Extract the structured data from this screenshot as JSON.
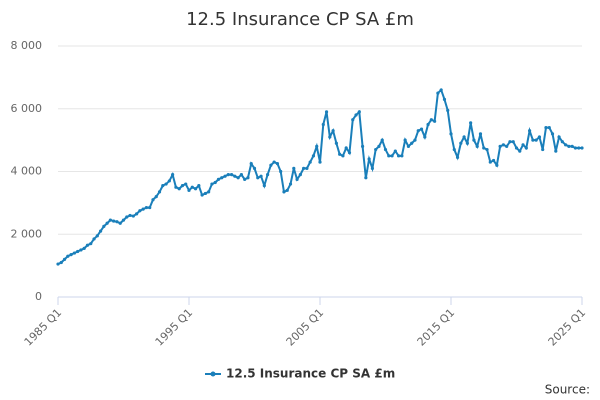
{
  "chart_data": {
    "type": "line",
    "title": "12.5 Insurance CP SA £m",
    "source": "Source:",
    "categories": [
      "1985 Q1",
      null,
      null,
      null,
      null,
      null,
      null,
      null,
      null,
      null,
      null,
      null,
      null,
      null,
      null,
      null,
      null,
      null,
      null,
      null,
      null,
      null,
      null,
      null,
      null,
      null,
      null,
      null,
      null,
      null,
      null,
      null,
      null,
      null,
      null,
      null,
      null,
      null,
      null,
      null,
      "1995 Q1",
      null,
      null,
      null,
      null,
      null,
      null,
      null,
      null,
      null,
      null,
      null,
      null,
      null,
      null,
      null,
      null,
      null,
      null,
      null,
      null,
      null,
      null,
      null,
      null,
      null,
      null,
      null,
      null,
      null,
      null,
      null,
      null,
      null,
      null,
      null,
      null,
      null,
      null,
      null,
      "2005 Q1",
      null,
      null,
      null,
      null,
      null,
      null,
      null,
      null,
      null,
      null,
      null,
      null,
      null,
      null,
      null,
      null,
      null,
      null,
      null,
      null,
      null,
      null,
      null,
      null,
      null,
      null,
      null,
      null,
      null,
      null,
      null,
      null,
      null,
      null,
      null,
      null,
      null,
      null,
      null,
      "2015 Q1",
      null,
      null,
      null,
      null,
      null,
      null,
      null,
      null,
      null,
      null,
      null,
      null,
      null,
      null,
      null,
      null,
      null,
      null,
      null,
      null,
      null,
      null,
      null,
      null,
      null,
      null,
      null,
      null,
      null,
      null,
      null,
      null,
      null,
      null,
      null,
      null,
      null,
      null,
      null,
      "2025 Q1"
    ],
    "series": [
      {
        "name": "12.5 Insurance CP SA £m",
        "color": "#1a7fba",
        "values": [
          1050,
          1100,
          1200,
          1300,
          1350,
          1400,
          1450,
          1500,
          1550,
          1650,
          1700,
          1850,
          1950,
          2100,
          2250,
          2350,
          2450,
          2420,
          2400,
          2350,
          2450,
          2550,
          2600,
          2580,
          2650,
          2750,
          2800,
          2850,
          2850,
          3100,
          3200,
          3350,
          3550,
          3600,
          3700,
          3900,
          3500,
          3450,
          3550,
          3600,
          3400,
          3500,
          3450,
          3550,
          3250,
          3300,
          3350,
          3600,
          3650,
          3750,
          3800,
          3850,
          3900,
          3900,
          3850,
          3800,
          3900,
          3750,
          3800,
          4250,
          4100,
          3800,
          3850,
          3550,
          3900,
          4200,
          4300,
          4250,
          4000,
          3350,
          3400,
          3600,
          4100,
          3750,
          3900,
          4100,
          4100,
          4300,
          4500,
          4800,
          4300,
          5500,
          5900,
          5100,
          5300,
          4900,
          4550,
          4500,
          4750,
          4600,
          5650,
          5800,
          5900,
          4800,
          3800,
          4400,
          4100,
          4700,
          4800,
          5000,
          4700,
          4500,
          4500,
          4650,
          4500,
          4500,
          5000,
          4800,
          4900,
          5000,
          5300,
          5350,
          5100,
          5500,
          5650,
          5600,
          6500,
          6600,
          6300,
          5950,
          5200,
          4700,
          4450,
          4900,
          5100,
          4900,
          5550,
          5000,
          4800,
          5200,
          4750,
          4700,
          4300,
          4350,
          4200,
          4800,
          4850,
          4800,
          4950,
          4950,
          4750,
          4650,
          4850,
          4750,
          5300,
          5000,
          5000,
          5100,
          4700,
          5400,
          5400,
          5200,
          4650,
          5100,
          4950,
          4850,
          4800,
          4800,
          4750,
          4750,
          4750
        ]
      }
    ],
    "ylim": [
      0,
      8000
    ],
    "yticks": [
      0,
      {
        "value": 2000,
        "label": "2 000"
      },
      {
        "value": 4000,
        "label": "4 000"
      },
      {
        "value": 6000,
        "label": "6 000"
      },
      {
        "value": 8000,
        "label": "8 000"
      }
    ],
    "grid": true
  }
}
